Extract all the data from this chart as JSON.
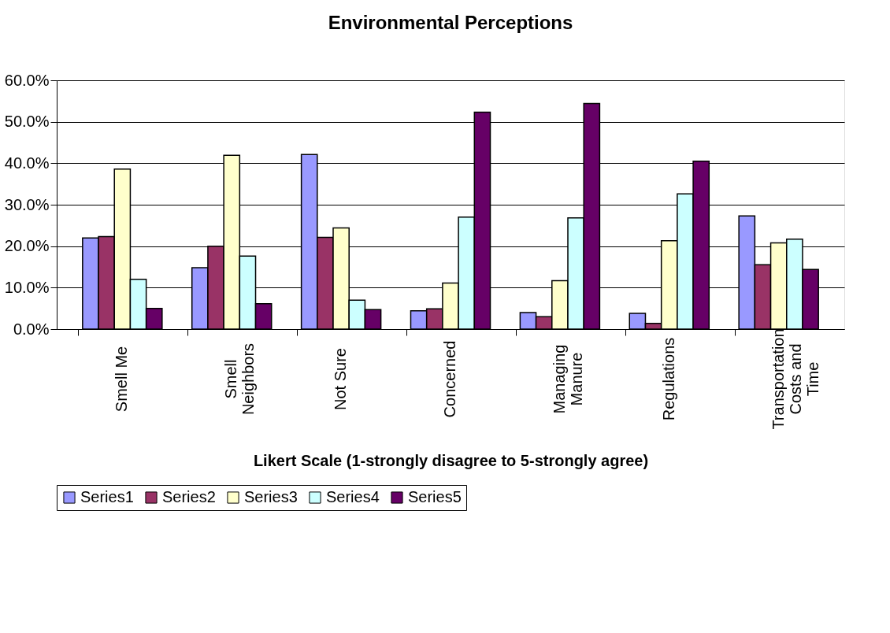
{
  "chart_data": {
    "type": "bar",
    "title": "Environmental Perceptions",
    "xlabel": "Likert Scale (1-strongly disagree to 5-strongly agree)",
    "categories": [
      "Smell Me",
      "Smell\nNeighbors",
      "Not Sure",
      "Concerned",
      "Managing\nManure",
      "Regulations",
      "Transportation\nCosts and\nTime"
    ],
    "series": [
      {
        "name": "Series1",
        "color": "#9999ff",
        "values": [
          22.0,
          14.8,
          42.1,
          4.4,
          4.0,
          3.8,
          27.3
        ]
      },
      {
        "name": "Series2",
        "color": "#993366",
        "values": [
          22.3,
          20.0,
          22.1,
          4.9,
          3.0,
          1.4,
          15.5
        ]
      },
      {
        "name": "Series3",
        "color": "#ffffcc",
        "values": [
          38.6,
          41.9,
          24.4,
          11.1,
          11.7,
          21.3,
          20.8
        ]
      },
      {
        "name": "Series4",
        "color": "#ccffff",
        "values": [
          12.0,
          17.6,
          7.0,
          27.0,
          26.8,
          32.6,
          21.7
        ]
      },
      {
        "name": "Series5",
        "color": "#660066",
        "values": [
          5.0,
          6.1,
          4.7,
          52.3,
          54.4,
          40.5,
          14.4
        ]
      }
    ],
    "ylim": [
      0,
      60
    ],
    "yticks": [
      {
        "value": 0,
        "label": "0.0%"
      },
      {
        "value": 10,
        "label": "10.0%"
      },
      {
        "value": 20,
        "label": "20.0%"
      },
      {
        "value": 30,
        "label": "30.0%"
      },
      {
        "value": 40,
        "label": "40.0%"
      },
      {
        "value": 50,
        "label": "50.0%"
      },
      {
        "value": 60,
        "label": "60.0%"
      }
    ],
    "grid": "y",
    "legend": "bottom"
  }
}
